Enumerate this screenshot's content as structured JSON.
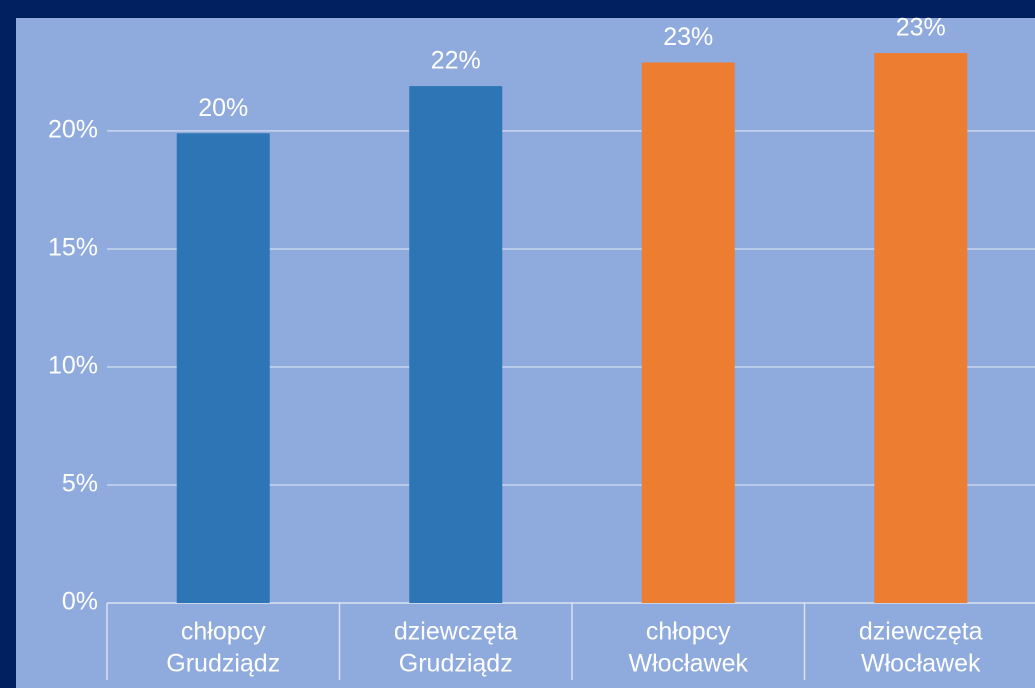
{
  "chart_data": {
    "type": "bar",
    "categories": [
      [
        "chłopcy",
        "Grudziądz"
      ],
      [
        "dziewczęta",
        "Grudziądz"
      ],
      [
        "chłopcy",
        "Włocławek"
      ],
      [
        "dziewczęta",
        "Włocławek"
      ]
    ],
    "values": [
      19.9,
      21.9,
      22.9,
      23.3
    ],
    "value_labels": [
      "20%",
      "22%",
      "23%",
      "23%"
    ],
    "colors": [
      "#2e75b6",
      "#2e75b6",
      "#ed7d31",
      "#ed7d31"
    ],
    "ylim": [
      0,
      24.7
    ],
    "yticks": [
      {
        "value": 0,
        "label": "0%"
      },
      {
        "value": 5,
        "label": "5%"
      },
      {
        "value": 10,
        "label": "10%"
      },
      {
        "value": 15,
        "label": "15%"
      },
      {
        "value": 20,
        "label": "20%"
      }
    ],
    "grid": true
  }
}
